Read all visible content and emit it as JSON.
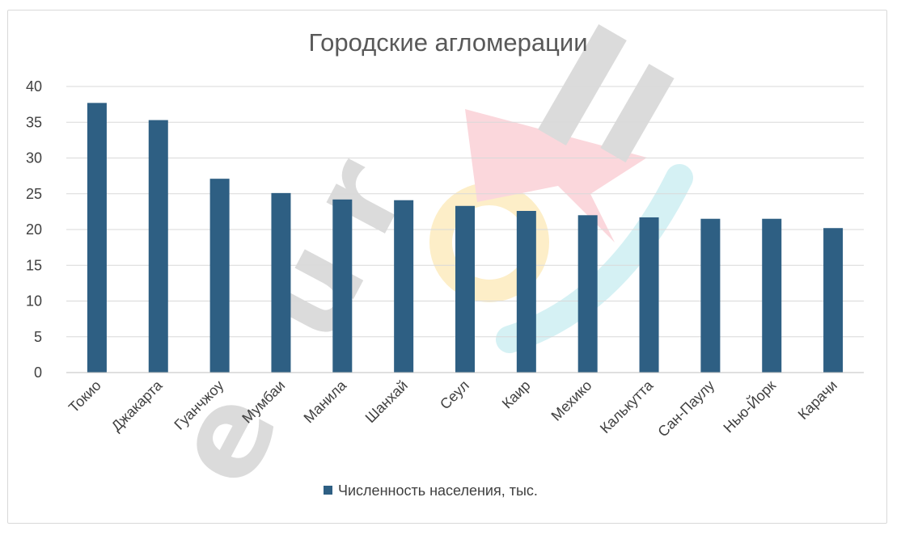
{
  "chart_data": {
    "type": "bar",
    "title": "Городские агломерации",
    "categories": [
      "Токио",
      "Джакарта",
      "Гуанчжоу",
      "Мумбаи",
      "Манила",
      "Шанхай",
      "Сеул",
      "Каир",
      "Мехико",
      "Калькутта",
      "Сан-Паулу",
      "Нью-Йорк",
      "Карачи"
    ],
    "series": [
      {
        "name": "Численность населения, тыс.",
        "color": "#2e5f83",
        "values": [
          37.7,
          35.3,
          27.1,
          25.1,
          24.2,
          24.1,
          23.3,
          22.6,
          22.0,
          21.7,
          21.5,
          21.5,
          20.2
        ]
      }
    ],
    "xlabel": "",
    "ylabel": "",
    "ylim": [
      0,
      40
    ],
    "yticks": [
      0,
      5,
      10,
      15,
      20,
      25,
      30,
      35,
      40
    ],
    "grid": true,
    "legend_position": "bottom"
  },
  "watermark": {
    "text": "eurokі",
    "colors": [
      "#c0c0c0",
      "#f7b6bf",
      "#fbe19b",
      "#b3e6ec"
    ]
  }
}
